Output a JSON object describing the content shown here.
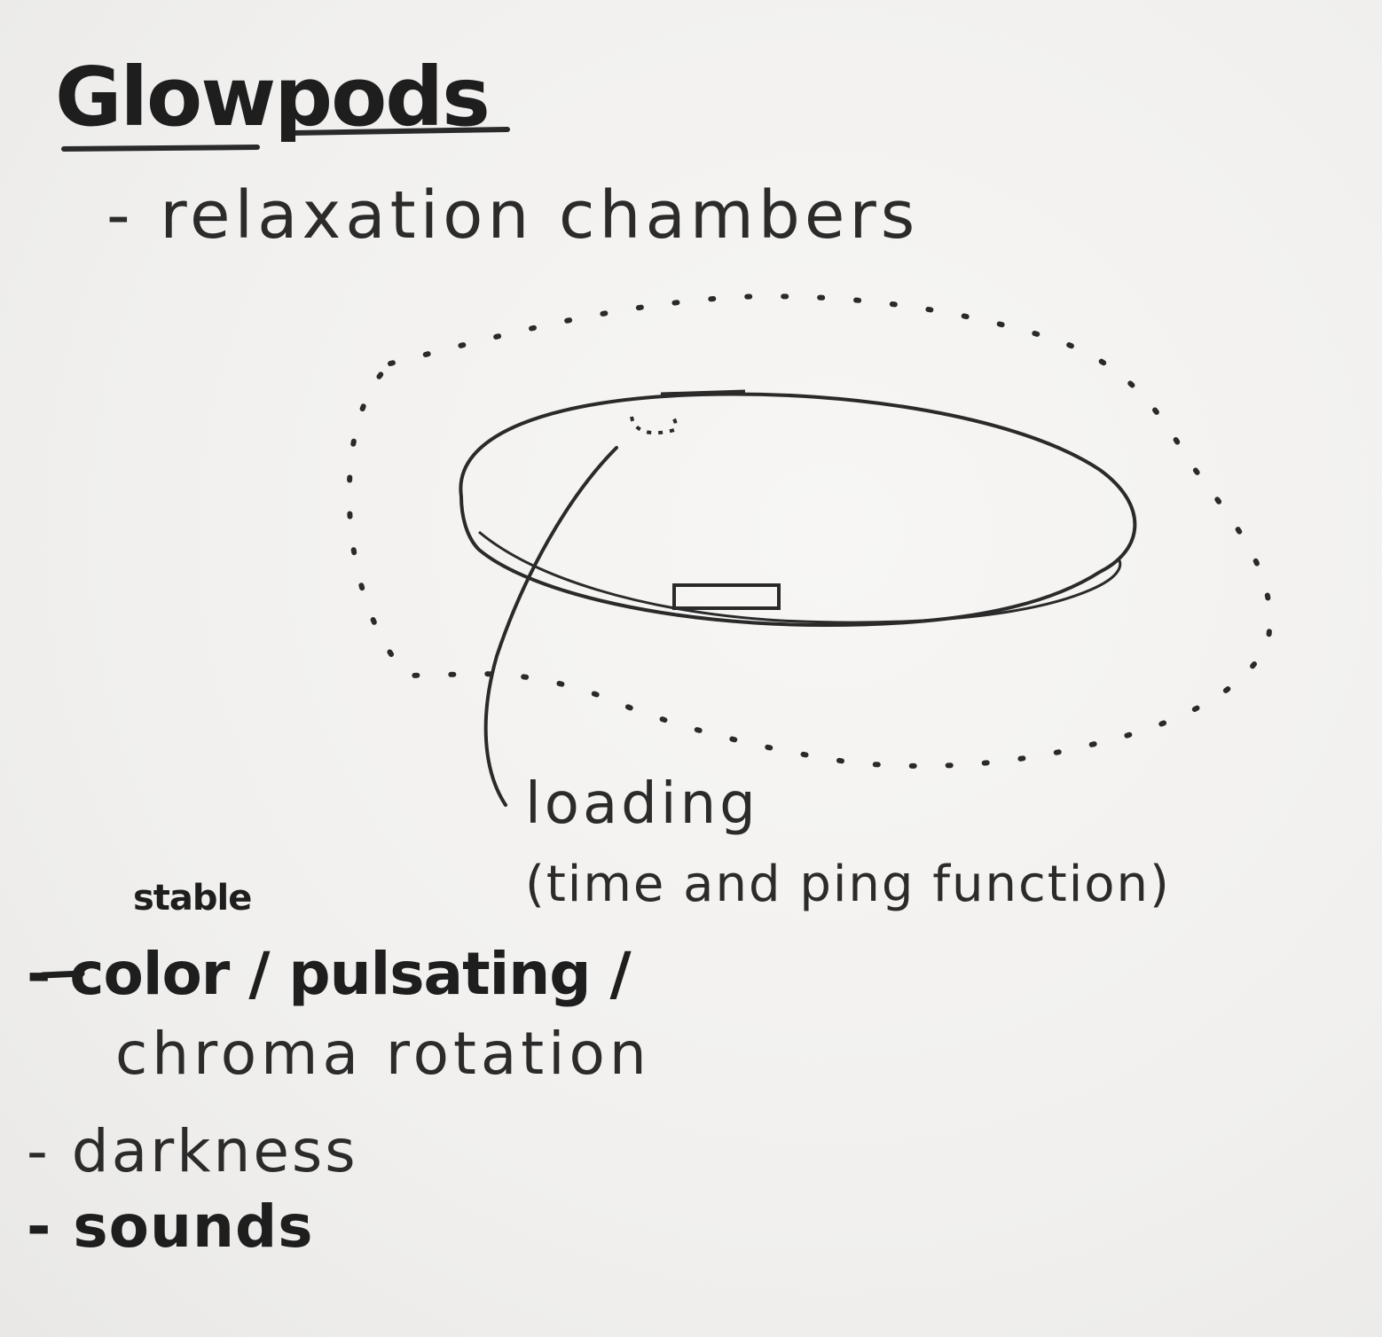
{
  "title": "Glowpods",
  "subtitle": "- relaxation chambers",
  "annotation": {
    "loading": "loading",
    "function": "(time and ping function)"
  },
  "stable_note": "stable",
  "features": [
    "- color / pulsating /",
    "chroma rotation",
    "- darkness",
    "- sounds"
  ]
}
